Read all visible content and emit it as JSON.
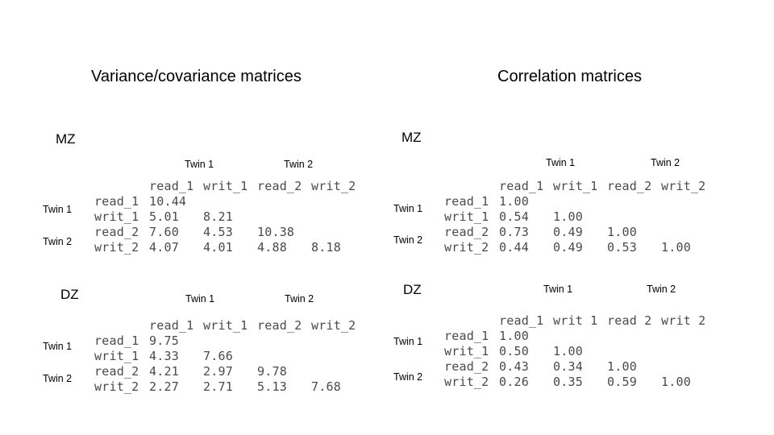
{
  "headings": {
    "covariance": "Variance/covariance matrices",
    "correlation": "Correlation matrices"
  },
  "groups": {
    "mz": "MZ",
    "dz": "DZ"
  },
  "twin_labels": {
    "twin1": "Twin 1",
    "twin2": "Twin 2"
  },
  "column_headers": [
    "read_1",
    "writ_1",
    "read_2",
    "writ_2"
  ],
  "column_headers_dz_correlation": [
    "read_1",
    "writ 1",
    "read 2",
    "writ 2"
  ],
  "row_headers": [
    "read_1",
    "writ_1",
    "read_2",
    "writ_2"
  ],
  "matrices": {
    "mz_covariance": [
      [
        "10.44"
      ],
      [
        "5.01",
        "8.21"
      ],
      [
        "7.60",
        "4.53",
        "10.38"
      ],
      [
        "4.07",
        "4.01",
        "4.88",
        "8.18"
      ]
    ],
    "dz_covariance": [
      [
        "9.75"
      ],
      [
        "4.33",
        "7.66"
      ],
      [
        "4.21",
        "2.97",
        "9.78"
      ],
      [
        "2.27",
        "2.71",
        "5.13",
        "7.68"
      ]
    ],
    "mz_correlation": [
      [
        "1.00"
      ],
      [
        "0.54",
        "1.00"
      ],
      [
        "0.73",
        "0.49",
        "1.00"
      ],
      [
        "0.44",
        "0.49",
        "0.53",
        "1.00"
      ]
    ],
    "dz_correlation": [
      [
        "1.00"
      ],
      [
        "0.50",
        "1.00"
      ],
      [
        "0.43",
        "0.34",
        "1.00"
      ],
      [
        "0.26",
        "0.35",
        "0.59",
        "1.00"
      ]
    ]
  }
}
